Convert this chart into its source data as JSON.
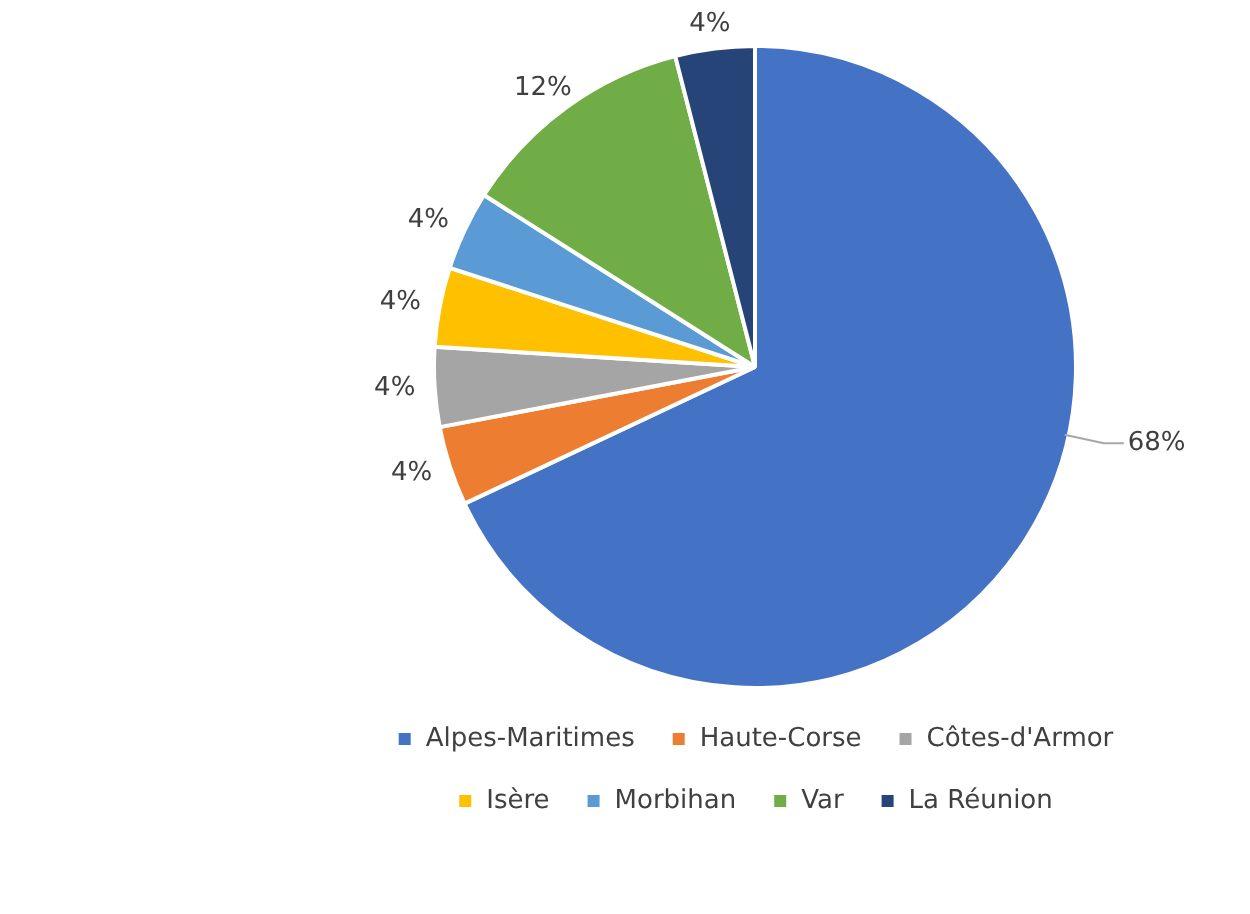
{
  "chart_data": {
    "type": "pie",
    "categories": [
      "Alpes-Maritimes",
      "Haute-Corse",
      "Côtes-d'Armor",
      "Isère",
      "Morbihan",
      "Var",
      "La Réunion"
    ],
    "values": [
      68,
      4,
      4,
      4,
      4,
      12,
      4
    ],
    "colors": [
      "#4472c4",
      "#ed7d31",
      "#a5a5a5",
      "#ffc000",
      "#5b9bd5",
      "#70ad47",
      "#264478"
    ],
    "value_labels": [
      "68%",
      "4%",
      "4%",
      "4%",
      "4%",
      "12%",
      "4%"
    ],
    "legend": "bottom"
  }
}
